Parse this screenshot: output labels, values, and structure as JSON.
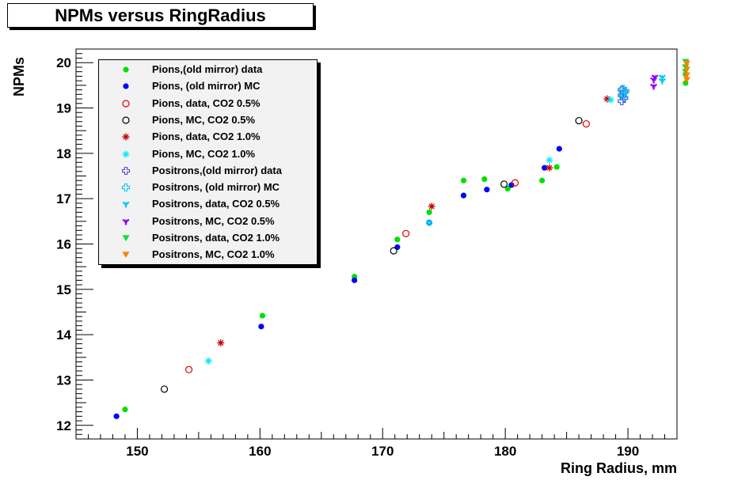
{
  "chart_data": {
    "type": "scatter",
    "title": "NPMs versus RingRadius",
    "xlabel": "Ring Radius, mm",
    "ylabel": "NPMs",
    "xlim": [
      145,
      194
    ],
    "ylim": [
      11.7,
      20.3
    ],
    "xticks": [
      150,
      160,
      170,
      180,
      190
    ],
    "yticks": [
      12,
      13,
      14,
      15,
      16,
      17,
      18,
      19,
      20
    ],
    "grid": false,
    "legend_position": "top-left",
    "series": [
      {
        "name": "Pions,(old mirror) data",
        "color": "#00e000",
        "marker": "dot",
        "points": [
          [
            149.0,
            12.35
          ],
          [
            160.2,
            14.42
          ],
          [
            167.7,
            15.28
          ],
          [
            171.2,
            16.1
          ],
          [
            173.8,
            16.7
          ],
          [
            176.6,
            17.4
          ],
          [
            178.3,
            17.43
          ],
          [
            180.2,
            17.22
          ],
          [
            183.0,
            17.4
          ],
          [
            184.2,
            17.7
          ],
          [
            194.7,
            19.55
          ],
          [
            194.7,
            19.75
          ]
        ]
      },
      {
        "name": "Pions, (old mirror) MC",
        "color": "#0000ff",
        "marker": "dot",
        "points": [
          [
            148.3,
            12.2
          ],
          [
            160.1,
            14.18
          ],
          [
            167.7,
            15.2
          ],
          [
            171.2,
            15.93
          ],
          [
            173.8,
            16.47
          ],
          [
            176.6,
            17.07
          ],
          [
            178.5,
            17.2
          ],
          [
            180.5,
            17.3
          ],
          [
            183.2,
            17.68
          ],
          [
            184.4,
            18.1
          ]
        ]
      },
      {
        "name": "Pions, data,  CO2 0.5%",
        "color": "#e00000",
        "marker": "open-circle",
        "points": [
          [
            154.2,
            13.23
          ],
          [
            171.9,
            16.23
          ],
          [
            180.8,
            17.35
          ],
          [
            186.6,
            18.65
          ]
        ]
      },
      {
        "name": "Pions, MC,  CO2 0.5%",
        "color": "#000000",
        "marker": "open-circle",
        "points": [
          [
            152.2,
            12.8
          ],
          [
            170.9,
            15.85
          ],
          [
            179.9,
            17.32
          ],
          [
            186.0,
            18.72
          ]
        ]
      },
      {
        "name": "Pions, data,  CO2 1.0%",
        "color": "#c00000",
        "marker": "star",
        "points": [
          [
            156.8,
            13.82
          ],
          [
            174.0,
            16.83
          ],
          [
            183.6,
            17.68
          ],
          [
            188.3,
            19.2
          ]
        ]
      },
      {
        "name": "Pions, MC,  CO2 1.0%",
        "color": "#00e8ff",
        "marker": "star",
        "points": [
          [
            155.8,
            13.42
          ],
          [
            173.8,
            16.47
          ],
          [
            183.6,
            17.85
          ],
          [
            188.6,
            19.18
          ]
        ]
      },
      {
        "name": "Positrons,(old mirror) data",
        "color": "#5050c0",
        "marker": "open-cross",
        "points": [
          [
            189.5,
            19.15
          ],
          [
            189.5,
            19.28
          ],
          [
            189.5,
            19.4
          ],
          [
            189.7,
            19.22
          ],
          [
            189.7,
            19.35
          ]
        ]
      },
      {
        "name": "Positrons, (old mirror) MC",
        "color": "#00c8ff",
        "marker": "open-cross",
        "points": [
          [
            189.6,
            19.25
          ],
          [
            189.6,
            19.32
          ],
          [
            189.6,
            19.42
          ],
          [
            189.8,
            19.38
          ]
        ]
      },
      {
        "name": "Positrons, data,  CO2 0.5%",
        "color": "#00c8ff",
        "marker": "tri-star",
        "points": [
          [
            192.8,
            19.6
          ],
          [
            192.8,
            19.68
          ]
        ]
      },
      {
        "name": "Positrons, MC,  CO2 0.5%",
        "color": "#9000ff",
        "marker": "tri-star",
        "points": [
          [
            192.1,
            19.48
          ],
          [
            192.1,
            19.62
          ],
          [
            192.2,
            19.68
          ]
        ]
      },
      {
        "name": "Positrons, data,  CO2 1.0%",
        "color": "#00e040",
        "marker": "triangle-down",
        "points": [
          [
            194.7,
            20.02
          ],
          [
            194.7,
            19.9
          ],
          [
            194.7,
            19.8
          ]
        ]
      },
      {
        "name": "Positrons, MC,  CO2 1.0%",
        "color": "#ff8000",
        "marker": "triangle-down",
        "points": [
          [
            194.8,
            19.98
          ],
          [
            194.8,
            19.85
          ],
          [
            194.8,
            19.72
          ],
          [
            194.8,
            19.62
          ]
        ]
      }
    ]
  }
}
